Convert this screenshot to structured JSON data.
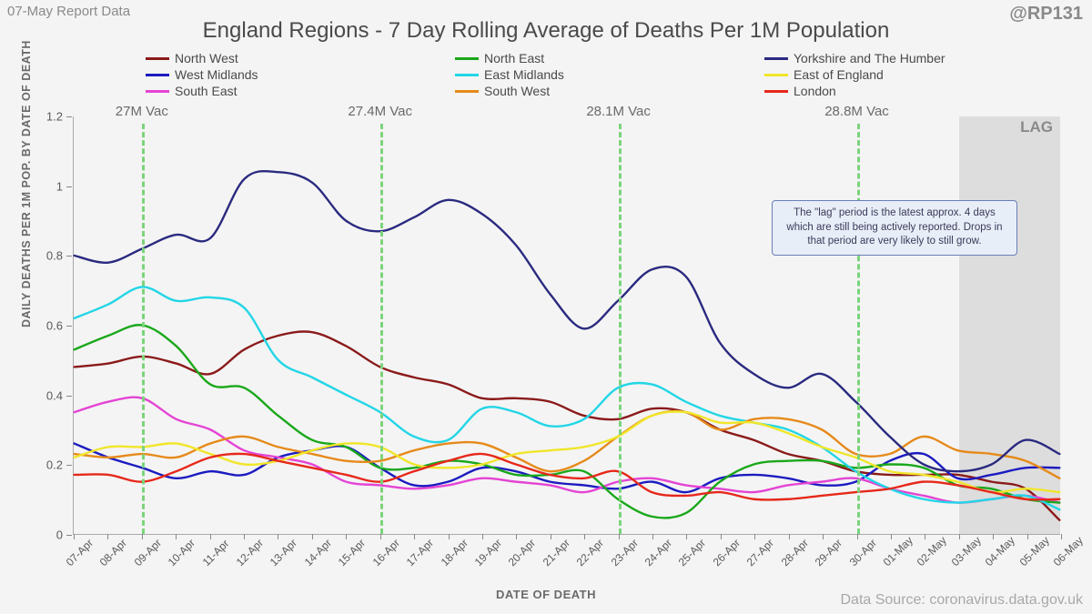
{
  "meta": {
    "report_label": "07-May Report Data",
    "handle": "@RP131",
    "data_source": "Data Source: coronavirus.data.gov.uk",
    "title": "England Regions - 7 Day Rolling Average of Deaths Per 1M Population",
    "yaxis": "DAILY DEATHS PER 1M POP. BY DATE OF DEATH",
    "xaxis": "DATE OF DEATH"
  },
  "chart": {
    "type": "line",
    "background_color": "#f4f4f4",
    "title_fontsize": 24,
    "label_fontsize": 13,
    "line_width": 2.4,
    "ylim": [
      0,
      1.2
    ],
    "ytick_step": 0.2,
    "x_categories": [
      "07-Apr",
      "08-Apr",
      "09-Apr",
      "10-Apr",
      "11-Apr",
      "12-Apr",
      "13-Apr",
      "14-Apr",
      "15-Apr",
      "16-Apr",
      "17-Apr",
      "18-Apr",
      "19-Apr",
      "20-Apr",
      "21-Apr",
      "22-Apr",
      "23-Apr",
      "24-Apr",
      "25-Apr",
      "26-Apr",
      "27-Apr",
      "28-Apr",
      "29-Apr",
      "30-Apr",
      "01-May",
      "02-May",
      "03-May",
      "04-May",
      "05-May",
      "06-May"
    ],
    "lag": {
      "start_index": 26,
      "label": "LAG",
      "fill": "rgba(160,160,160,0.28)"
    },
    "vac_markers": [
      {
        "index": 2,
        "label": "27M Vac",
        "color": "#7bd47b"
      },
      {
        "index": 9,
        "label": "27.4M Vac",
        "color": "#7bd47b"
      },
      {
        "index": 16,
        "label": "28.1M Vac",
        "color": "#7bd47b"
      },
      {
        "index": 23,
        "label": "28.8M Vac",
        "color": "#7bd47b"
      }
    ],
    "tooltip": {
      "text": "The \"lag\" period is the latest approx. 4 days which are still being actively reported. Drops in that period are very likely to still grow.",
      "x_index": 20.5,
      "y_value": 0.96,
      "bg": "#e8eef7",
      "border": "#6a7fb8"
    },
    "series": [
      {
        "name": "North West",
        "color": "#8b1a1a",
        "values": [
          0.48,
          0.49,
          0.51,
          0.49,
          0.46,
          0.53,
          0.57,
          0.58,
          0.54,
          0.48,
          0.45,
          0.43,
          0.39,
          0.39,
          0.38,
          0.34,
          0.33,
          0.36,
          0.35,
          0.3,
          0.27,
          0.23,
          0.21,
          0.18,
          0.17,
          0.17,
          0.17,
          0.15,
          0.13,
          0.04
        ]
      },
      {
        "name": "West Midlands",
        "color": "#1b1bc0",
        "values": [
          0.26,
          0.22,
          0.19,
          0.16,
          0.18,
          0.17,
          0.22,
          0.24,
          0.25,
          0.19,
          0.14,
          0.15,
          0.19,
          0.18,
          0.15,
          0.14,
          0.13,
          0.15,
          0.12,
          0.16,
          0.17,
          0.16,
          0.14,
          0.15,
          0.21,
          0.23,
          0.16,
          0.17,
          0.19,
          0.19
        ]
      },
      {
        "name": "South East",
        "color": "#e444d4",
        "values": [
          0.35,
          0.38,
          0.39,
          0.33,
          0.3,
          0.24,
          0.22,
          0.2,
          0.15,
          0.14,
          0.13,
          0.14,
          0.16,
          0.15,
          0.14,
          0.12,
          0.15,
          0.16,
          0.14,
          0.13,
          0.12,
          0.14,
          0.15,
          0.16,
          0.13,
          0.11,
          0.09,
          0.1,
          0.11,
          0.09
        ]
      },
      {
        "name": "North East",
        "color": "#1aa81a",
        "values": [
          0.53,
          0.57,
          0.6,
          0.54,
          0.43,
          0.42,
          0.34,
          0.27,
          0.25,
          0.19,
          0.19,
          0.21,
          0.2,
          0.17,
          0.17,
          0.18,
          0.1,
          0.05,
          0.06,
          0.15,
          0.2,
          0.21,
          0.21,
          0.19,
          0.2,
          0.19,
          0.14,
          0.13,
          0.1,
          0.09
        ]
      },
      {
        "name": "East Midlands",
        "color": "#22d6e6",
        "values": [
          0.62,
          0.66,
          0.71,
          0.67,
          0.68,
          0.65,
          0.5,
          0.45,
          0.4,
          0.35,
          0.28,
          0.27,
          0.36,
          0.35,
          0.31,
          0.33,
          0.42,
          0.43,
          0.38,
          0.34,
          0.32,
          0.3,
          0.25,
          0.18,
          0.13,
          0.1,
          0.09,
          0.1,
          0.11,
          0.07
        ]
      },
      {
        "name": "South West",
        "color": "#e68a1a",
        "values": [
          0.23,
          0.22,
          0.23,
          0.22,
          0.26,
          0.28,
          0.25,
          0.23,
          0.21,
          0.21,
          0.24,
          0.26,
          0.26,
          0.22,
          0.18,
          0.21,
          0.28,
          0.34,
          0.35,
          0.3,
          0.33,
          0.33,
          0.3,
          0.23,
          0.23,
          0.28,
          0.24,
          0.23,
          0.21,
          0.16
        ]
      },
      {
        "name": "Yorkshire and The Humber",
        "color": "#2a2a80",
        "values": [
          0.8,
          0.78,
          0.82,
          0.86,
          0.85,
          1.02,
          1.04,
          1.01,
          0.9,
          0.87,
          0.91,
          0.96,
          0.92,
          0.83,
          0.69,
          0.59,
          0.67,
          0.76,
          0.74,
          0.55,
          0.46,
          0.42,
          0.46,
          0.38,
          0.28,
          0.2,
          0.18,
          0.2,
          0.27,
          0.23
        ]
      },
      {
        "name": "East of England",
        "color": "#f0e62a",
        "values": [
          0.22,
          0.25,
          0.25,
          0.26,
          0.23,
          0.2,
          0.21,
          0.24,
          0.26,
          0.25,
          0.2,
          0.19,
          0.2,
          0.23,
          0.24,
          0.25,
          0.28,
          0.34,
          0.35,
          0.32,
          0.32,
          0.29,
          0.25,
          0.22,
          0.18,
          0.17,
          0.15,
          0.12,
          0.13,
          0.12
        ]
      },
      {
        "name": "London",
        "color": "#e6281a",
        "values": [
          0.17,
          0.17,
          0.15,
          0.18,
          0.22,
          0.23,
          0.21,
          0.19,
          0.17,
          0.15,
          0.18,
          0.21,
          0.23,
          0.2,
          0.17,
          0.16,
          0.18,
          0.12,
          0.11,
          0.12,
          0.1,
          0.1,
          0.11,
          0.12,
          0.13,
          0.15,
          0.14,
          0.12,
          0.1,
          0.1
        ]
      }
    ],
    "legend_order": [
      "North West",
      "North East",
      "Yorkshire and The Humber",
      "West Midlands",
      "East Midlands",
      "East of England",
      "South East",
      "South West",
      "London"
    ]
  }
}
